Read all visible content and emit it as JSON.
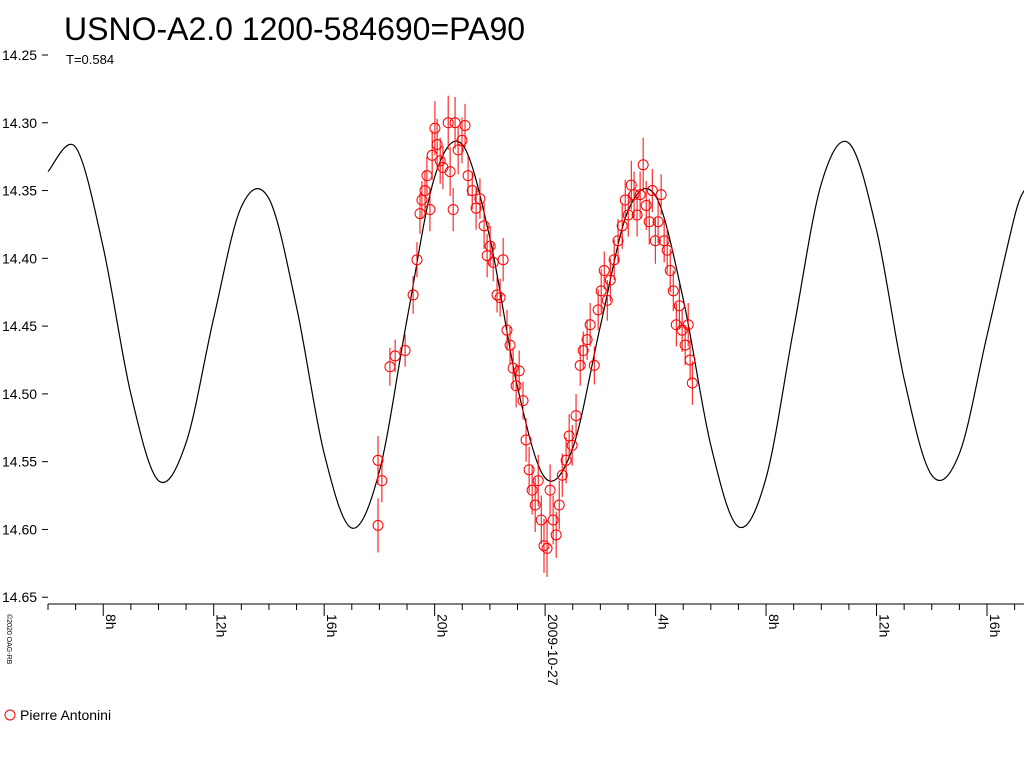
{
  "chart_data": {
    "type": "scatter",
    "title": "USNO-A2.0 1200-584690=PA90",
    "subtitle": "T=0.584",
    "credit": "©2020 OAG-RB",
    "xlim": [
      -18,
      17.34
    ],
    "xticks": [
      {
        "value": -16,
        "label": "8h"
      },
      {
        "value": -12,
        "label": "12h"
      },
      {
        "value": -8,
        "label": "16h"
      },
      {
        "value": -4,
        "label": "20h"
      },
      {
        "value": 0,
        "label": "2009-10-27"
      },
      {
        "value": 4,
        "label": "4h"
      },
      {
        "value": 8,
        "label": "8h"
      },
      {
        "value": 12,
        "label": "12h"
      },
      {
        "value": 16,
        "label": "16h"
      }
    ],
    "xminorticks": [
      -18,
      -17,
      -15,
      -14,
      -13,
      -11,
      -10,
      -9,
      -7,
      -6,
      -5,
      -3,
      -2,
      -1,
      1,
      2,
      3,
      5,
      6,
      7,
      9,
      10,
      11,
      13,
      14,
      15,
      17
    ],
    "ylim": [
      14.25,
      14.655
    ],
    "y_inverted": true,
    "yticks": [
      {
        "value": 14.25,
        "label": "14.25"
      },
      {
        "value": 14.3,
        "label": "14.30"
      },
      {
        "value": 14.35,
        "label": "14.35"
      },
      {
        "value": 14.4,
        "label": "14.40"
      },
      {
        "value": 14.45,
        "label": "14.45"
      },
      {
        "value": 14.5,
        "label": "14.50"
      },
      {
        "value": 14.55,
        "label": "14.55"
      },
      {
        "value": 14.6,
        "label": "14.60"
      },
      {
        "value": 14.65,
        "label": "14.65"
      }
    ],
    "model": {
      "color": "#000000",
      "x": [
        -18,
        -17,
        -16,
        -15,
        -14,
        -13,
        -12,
        -11,
        -10,
        -9,
        -8,
        -7,
        -6,
        -5,
        -4,
        -3,
        -2,
        -1,
        0,
        1,
        2,
        3,
        4,
        5,
        6,
        7,
        8,
        9,
        10,
        11,
        12,
        13,
        14,
        15,
        16,
        17,
        17.34
      ],
      "values": [
        14.336,
        14.318,
        14.392,
        14.5,
        14.564,
        14.536,
        14.444,
        14.362,
        14.356,
        14.436,
        14.544,
        14.599,
        14.557,
        14.445,
        14.34,
        14.316,
        14.385,
        14.495,
        14.562,
        14.54,
        14.45,
        14.365,
        14.354,
        14.43,
        14.538,
        14.598,
        14.562,
        14.452,
        14.345,
        14.315,
        14.379,
        14.489,
        14.56,
        14.544,
        14.457,
        14.369,
        14.35
      ]
    },
    "series": [
      {
        "name": "Pierre Antonini",
        "color": "#ff0000",
        "x": [
          -6.05,
          -6.05,
          -5.91,
          -5.62,
          -5.43,
          -5.07,
          -4.78,
          -4.64,
          -4.53,
          -4.46,
          -4.35,
          -4.28,
          -4.17,
          -4.09,
          -3.99,
          -3.91,
          -3.8,
          -3.7,
          -3.51,
          -3.44,
          -3.33,
          -3.26,
          -3.15,
          -3.01,
          -2.9,
          -2.79,
          -2.64,
          -2.5,
          -2.36,
          -2.21,
          -2.1,
          -1.99,
          -1.88,
          -1.74,
          -1.63,
          -1.52,
          -1.38,
          -1.27,
          -1.16,
          -1.05,
          -0.94,
          -0.8,
          -0.69,
          -0.58,
          -0.47,
          -0.36,
          -0.25,
          -0.14,
          -0.04,
          0.07,
          0.18,
          0.29,
          0.4,
          0.51,
          0.62,
          0.76,
          0.87,
          0.98,
          1.12,
          1.27,
          1.38,
          1.52,
          1.63,
          1.78,
          1.92,
          2.03,
          2.14,
          2.25,
          2.36,
          2.5,
          2.64,
          2.79,
          2.9,
          3.01,
          3.12,
          3.22,
          3.33,
          3.44,
          3.55,
          3.66,
          3.77,
          3.88,
          3.99,
          4.09,
          4.2,
          4.31,
          4.42,
          4.53,
          4.64,
          4.75,
          4.86,
          4.96,
          5.07,
          5.18,
          5.25,
          5.33
        ],
        "values": [
          14.597,
          14.549,
          14.564,
          14.48,
          14.472,
          14.468,
          14.427,
          14.401,
          14.367,
          14.357,
          14.35,
          14.339,
          14.364,
          14.324,
          14.304,
          14.316,
          14.328,
          14.333,
          14.3,
          14.336,
          14.364,
          14.3,
          14.32,
          14.313,
          14.302,
          14.339,
          14.35,
          14.363,
          14.356,
          14.376,
          14.398,
          14.391,
          14.403,
          14.427,
          14.429,
          14.401,
          14.453,
          14.464,
          14.481,
          14.494,
          14.483,
          14.505,
          14.534,
          14.556,
          14.571,
          14.582,
          14.564,
          14.593,
          14.612,
          14.614,
          14.571,
          14.593,
          14.604,
          14.582,
          14.56,
          14.549,
          14.531,
          14.538,
          14.516,
          14.479,
          14.468,
          14.46,
          14.449,
          14.479,
          14.438,
          14.424,
          14.409,
          14.431,
          14.416,
          14.401,
          14.387,
          14.376,
          14.357,
          14.368,
          14.346,
          14.353,
          14.368,
          14.353,
          14.331,
          14.361,
          14.373,
          14.35,
          14.387,
          14.373,
          14.353,
          14.387,
          14.394,
          14.409,
          14.424,
          14.449,
          14.435,
          14.453,
          14.464,
          14.449,
          14.475,
          14.492
        ],
        "errors": [
          0.02,
          0.018,
          0.016,
          0.014,
          0.012,
          0.012,
          0.014,
          0.013,
          0.015,
          0.014,
          0.015,
          0.014,
          0.016,
          0.018,
          0.02,
          0.019,
          0.017,
          0.016,
          0.02,
          0.018,
          0.016,
          0.019,
          0.018,
          0.017,
          0.016,
          0.015,
          0.014,
          0.016,
          0.015,
          0.017,
          0.016,
          0.015,
          0.014,
          0.013,
          0.014,
          0.016,
          0.015,
          0.014,
          0.015,
          0.016,
          0.015,
          0.014,
          0.016,
          0.017,
          0.018,
          0.02,
          0.019,
          0.018,
          0.02,
          0.021,
          0.019,
          0.018,
          0.017,
          0.018,
          0.016,
          0.017,
          0.016,
          0.015,
          0.016,
          0.015,
          0.014,
          0.015,
          0.016,
          0.014,
          0.015,
          0.016,
          0.014,
          0.015,
          0.016,
          0.015,
          0.016,
          0.017,
          0.015,
          0.016,
          0.018,
          0.017,
          0.016,
          0.017,
          0.02,
          0.018,
          0.017,
          0.016,
          0.017,
          0.016,
          0.015,
          0.016,
          0.017,
          0.016,
          0.015,
          0.016,
          0.017,
          0.016,
          0.015,
          0.016,
          0.015,
          0.016
        ]
      }
    ]
  }
}
